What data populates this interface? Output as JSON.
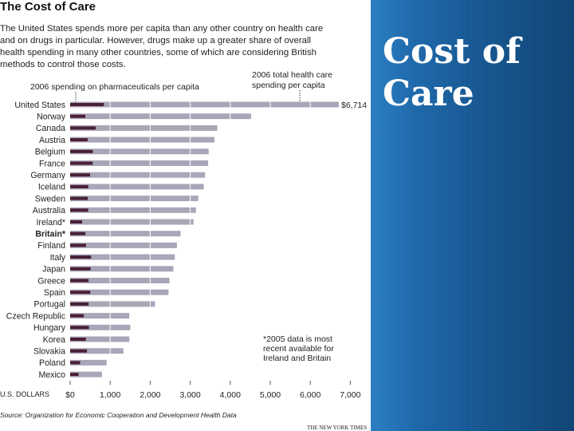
{
  "slide": {
    "title_lines": [
      "Cost of",
      "Care"
    ],
    "colors": {
      "panel": "#1a5e9f",
      "title_text": "#ffffff"
    }
  },
  "figure": {
    "title": "The Cost of Care",
    "description_lines": [
      "The United States spends more per capita than any other country on health care",
      "and on drugs in particular. However, drugs make up a greater share of overall",
      "health spending in many other countries, some of which are considering British",
      "methods to control those costs."
    ],
    "legend_pharma": "2006 spending on pharmaceuticals per capita",
    "legend_total_lines": [
      "2006 total health care",
      "spending per capita"
    ],
    "footnote_lines": [
      "*2005 data is most",
      "recent available for",
      "Ireland and Britain"
    ],
    "x_unit_label": "U.S. DOLLARS",
    "source": "Source: Organization for Economic Cooperation and Development Health Data",
    "credit": "THE NEW YORK TIMES",
    "us_value_label": "$6,714",
    "colors": {
      "total_bar": "#a9a6b8",
      "pharma_bar": "#4a1f35",
      "gridline": "#ffffff",
      "text": "#222222"
    }
  },
  "chart_data": {
    "type": "bar",
    "orientation": "horizontal",
    "title": "The Cost of Care",
    "xlabel": "U.S. DOLLARS",
    "xlim": [
      0,
      7000
    ],
    "xticks": [
      0,
      1000,
      2000,
      3000,
      4000,
      5000,
      6000,
      7000
    ],
    "xtick_labels": [
      "$0",
      "1,000",
      "2,000",
      "3,000",
      "4,000",
      "5,000",
      "6,000",
      "7,000"
    ],
    "categories": [
      "United States",
      "Norway",
      "Canada",
      "Austria",
      "Belgium",
      "France",
      "Germany",
      "Iceland",
      "Sweden",
      "Australia",
      "Ireland*",
      "Britain*",
      "Finland",
      "Italy",
      "Japan",
      "Greece",
      "Spain",
      "Portugal",
      "Czech Republic",
      "Hungary",
      "Korea",
      "Slovakia",
      "Poland",
      "Mexico"
    ],
    "highlight_category": "Britain*",
    "series": [
      {
        "name": "2006 total health care spending per capita",
        "values": [
          6714,
          4520,
          3678,
          3606,
          3462,
          3449,
          3371,
          3340,
          3202,
          3141,
          3082,
          2760,
          2668,
          2614,
          2581,
          2483,
          2458,
          2120,
          1479,
          1504,
          1480,
          1330,
          910,
          794
        ]
      },
      {
        "name": "2006 spending on pharmaceuticals per capita",
        "values": [
          843,
          379,
          639,
          437,
          566,
          564,
          498,
          451,
          438,
          450,
          300,
          380,
          397,
          524,
          510,
          460,
          502,
          460,
          340,
          470,
          395,
          420,
          250,
          210
        ]
      }
    ]
  }
}
